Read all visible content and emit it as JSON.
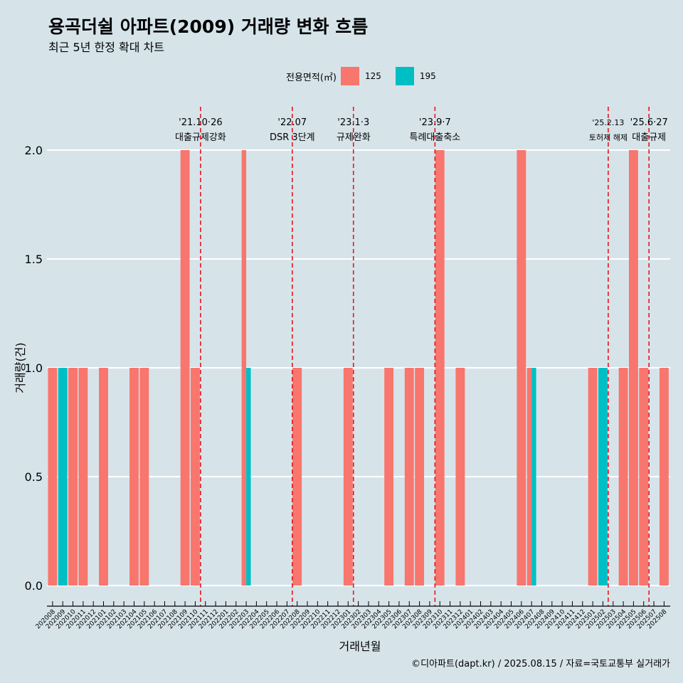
{
  "header": {
    "title": "용곡더쉴 아파트(2009) 거래량 변화 흐름",
    "subtitle": "최근 5년 한정 확대 차트"
  },
  "legend": {
    "title": "전용면적(㎡)",
    "items": [
      {
        "label": "125",
        "color": "#f8766d"
      },
      {
        "label": "195",
        "color": "#00bfc4"
      }
    ]
  },
  "caption": "©디아파트(dapt.kr) / 2025.08.15 / 자료=국토교통부 실거래가",
  "chart_data": {
    "type": "bar",
    "xlabel": "거래년월",
    "ylabel": "거래량(건)",
    "ylim": [
      0,
      2
    ],
    "yticks": [
      "0.0",
      "0.5",
      "1.0",
      "1.5",
      "2.0"
    ],
    "grid": true,
    "legend_position": "top",
    "categories": [
      "202008",
      "202009",
      "202010",
      "202011",
      "202012",
      "202101",
      "202102",
      "202103",
      "202104",
      "202105",
      "202106",
      "202107",
      "202108",
      "202109",
      "202110",
      "202111",
      "202112",
      "202201",
      "202202",
      "202203",
      "202204",
      "202205",
      "202206",
      "202207",
      "202208",
      "202209",
      "202210",
      "202211",
      "202212",
      "202301",
      "202302",
      "202303",
      "202304",
      "202305",
      "202306",
      "202307",
      "202308",
      "202309",
      "202310",
      "202311",
      "202312",
      "202401",
      "202402",
      "202403",
      "202404",
      "202405",
      "202406",
      "202407",
      "202408",
      "202409",
      "202410",
      "202411",
      "202412",
      "202501",
      "202502",
      "202503",
      "202504",
      "202505",
      "202506",
      "202507",
      "202508"
    ],
    "series": [
      {
        "name": "125",
        "color": "#f8766d",
        "values": [
          1,
          0,
          1,
          1,
          0,
          1,
          0,
          0,
          1,
          1,
          0,
          0,
          0,
          2,
          1,
          0,
          0,
          0,
          0,
          2,
          0,
          0,
          0,
          0,
          1,
          0,
          0,
          0,
          0,
          1,
          0,
          0,
          0,
          1,
          0,
          1,
          1,
          0,
          2,
          0,
          1,
          0,
          0,
          0,
          0,
          0,
          2,
          1,
          0,
          0,
          0,
          0,
          0,
          1,
          0,
          0,
          1,
          2,
          1,
          0,
          1
        ]
      },
      {
        "name": "195",
        "color": "#00bfc4",
        "values": [
          0,
          1,
          0,
          0,
          0,
          0,
          0,
          0,
          0,
          0,
          0,
          0,
          0,
          0,
          0,
          0,
          0,
          0,
          0,
          1,
          0,
          0,
          0,
          0,
          0,
          0,
          0,
          0,
          0,
          0,
          0,
          0,
          0,
          0,
          0,
          0,
          0,
          0,
          0,
          0,
          0,
          0,
          0,
          0,
          0,
          0,
          0,
          1,
          0,
          0,
          0,
          0,
          0,
          0,
          1,
          0,
          0,
          0,
          0,
          0,
          0
        ]
      }
    ],
    "annotations": [
      {
        "date": "'21.10·26",
        "label": "대출규제강화",
        "after": "202110"
      },
      {
        "date": "'22.07",
        "label": "DSR 3단계",
        "after": "202207"
      },
      {
        "date": "'23.1·3",
        "label": "규제완화",
        "after": "202301"
      },
      {
        "date": "'23.9·7",
        "label": "특례대출축소",
        "after": "202309"
      },
      {
        "date": "'25.2.13",
        "label": "토허제 해제",
        "after": "202502"
      },
      {
        "date": "'25.6·27",
        "label": "대출규제",
        "after": "202506"
      }
    ]
  }
}
